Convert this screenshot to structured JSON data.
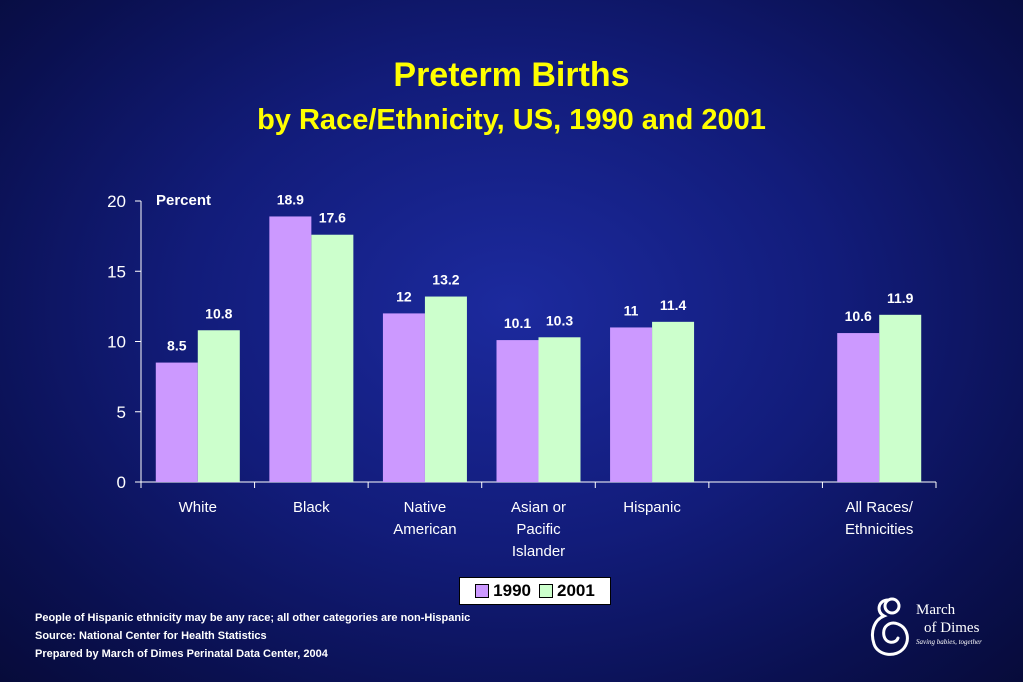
{
  "title": "Preterm Births",
  "subtitle": "by Race/Ethnicity, US, 1990 and 2001",
  "chart_data": {
    "type": "bar",
    "ylabel": "Percent",
    "ylim": [
      0,
      20
    ],
    "yticks": [
      "0",
      "5",
      "10",
      "15",
      "20"
    ],
    "categories": [
      [
        "White"
      ],
      [
        "Black"
      ],
      [
        "Native",
        "American"
      ],
      [
        "Asian or",
        "Pacific",
        "Islander"
      ],
      [
        "Hispanic"
      ],
      [],
      [
        "All Races/",
        "Ethnicities"
      ]
    ],
    "series": [
      {
        "name": "1990",
        "color": "#cc99ff",
        "values": [
          8.5,
          18.9,
          12,
          10.1,
          11,
          null,
          10.6
        ],
        "labels": [
          "8.5",
          "18.9",
          "12",
          "10.1",
          "11",
          "",
          "10.6"
        ]
      },
      {
        "name": "2001",
        "color": "#ccffcc",
        "values": [
          10.8,
          17.6,
          13.2,
          10.3,
          11.4,
          null,
          11.9
        ],
        "labels": [
          "10.8",
          "17.6",
          "13.2",
          "10.3",
          "11.4",
          "",
          "11.9"
        ]
      }
    ],
    "legend": "bottom-center",
    "grid": false
  },
  "footnotes": [
    "People of Hispanic ethnicity may be any race; all other categories are non-Hispanic",
    "Source: National Center for Health Statistics",
    "Prepared by March of Dimes Perinatal Data Center, 2004"
  ],
  "logo": {
    "line1": "March",
    "line2": "of Dimes",
    "tagline": "Saving babies, together"
  }
}
